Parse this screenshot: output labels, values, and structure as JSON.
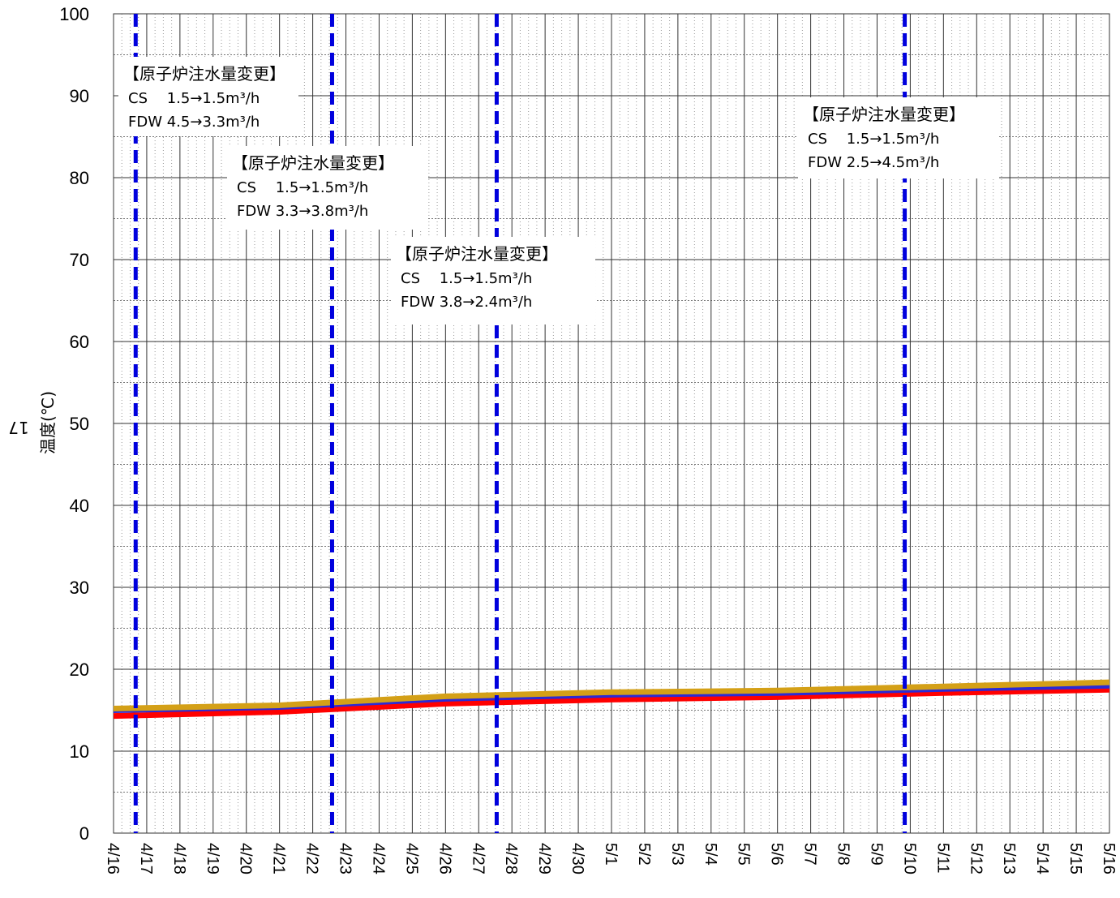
{
  "chart_data": {
    "type": "line",
    "ylabel": "温度(℃)",
    "ylim": [
      0,
      100
    ],
    "yticks": [
      0,
      10,
      20,
      30,
      40,
      50,
      60,
      70,
      80,
      90,
      100
    ],
    "x_start": "4/16",
    "x_end": "5/16",
    "categories": [
      "4/16",
      "4/17",
      "4/18",
      "4/19",
      "4/20",
      "4/21",
      "4/22",
      "4/23",
      "4/24",
      "4/25",
      "4/26",
      "4/27",
      "4/28",
      "4/29",
      "4/30",
      "5/1",
      "5/2",
      "5/3",
      "5/4",
      "5/5",
      "5/6",
      "5/7",
      "5/8",
      "5/9",
      "5/10",
      "5/11",
      "5/12",
      "5/13",
      "5/14",
      "5/15",
      "5/16"
    ],
    "grid": true,
    "series": [
      {
        "color": "#ff0000",
        "x": [
          "4/16",
          "4/21",
          "4/26",
          "5/1",
          "5/6",
          "5/11",
          "5/16"
        ],
        "values": [
          14.3,
          14.8,
          15.8,
          16.3,
          16.6,
          17.1,
          17.5
        ]
      },
      {
        "color": "#2a2ad6",
        "x": [
          "4/16",
          "4/21",
          "4/26",
          "5/1",
          "5/6",
          "5/11",
          "5/16"
        ],
        "values": [
          14.9,
          15.3,
          16.3,
          16.8,
          17.0,
          17.5,
          17.9
        ]
      },
      {
        "color": "#d4a017",
        "x": [
          "4/16",
          "4/21",
          "4/26",
          "5/1",
          "5/6",
          "5/11",
          "5/16"
        ],
        "values": [
          15.2,
          15.6,
          16.7,
          17.2,
          17.4,
          17.9,
          18.4
        ]
      }
    ],
    "events": [
      {
        "x": "4/16 16:00",
        "color": "#0000dd",
        "label": {
          "title": "【原子炉注水量変更】",
          "line1": "CS　 1.5→1.5m³/h",
          "line2": "FDW  4.5→3.3m³/h"
        }
      },
      {
        "x": "4/22 14:00",
        "color": "#0000dd",
        "label": {
          "title": "【原子炉注水量変更】",
          "line1": "CS　 1.5→1.5m³/h",
          "line2": "FDW  3.3→3.8m³/h"
        }
      },
      {
        "x": "4/27 13:00",
        "color": "#0000dd",
        "label": {
          "title": "【原子炉注水量変更】",
          "line1": "CS　 1.5→1.5m³/h",
          "line2": "FDW  3.8→2.4m³/h"
        }
      },
      {
        "x": "5/9 20:00",
        "color": "#0000dd",
        "label": {
          "title": "【原子炉注水量変更】",
          "line1": "CS　 1.5→1.5m³/h",
          "line2": "FDW  2.5→4.5m³/h"
        }
      }
    ]
  },
  "page_note": "17"
}
